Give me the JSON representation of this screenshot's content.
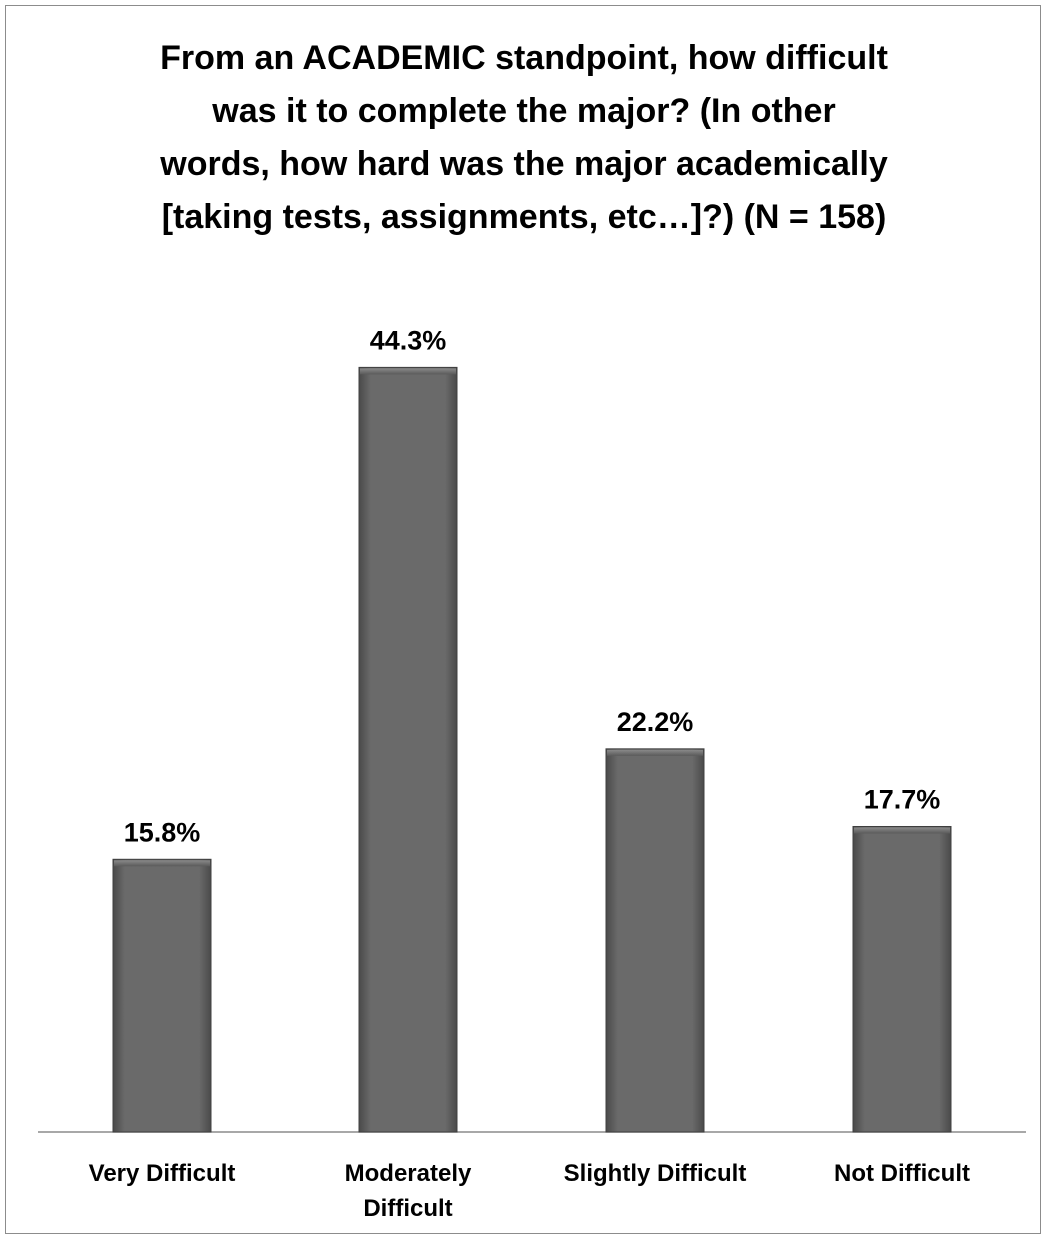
{
  "chart_data": {
    "type": "bar",
    "title": "From an ACADEMIC standpoint, how difficult was it to complete the major? (In other words, how hard was the major academically [taking tests, assignments, etc…]?) (N = 158)",
    "categories": [
      "Very Difficult",
      "Moderately Difficult",
      "Slightly Difficult",
      "Not Difficult"
    ],
    "values": [
      15.8,
      44.3,
      22.2,
      17.7
    ],
    "value_labels": [
      "15.8%",
      "44.3%",
      "22.2%",
      "17.7%"
    ],
    "unit": "%",
    "xlabel": "",
    "ylabel": "",
    "ylim": [
      0,
      50
    ],
    "grid": false,
    "legend": "none",
    "bar_color": "#666666"
  }
}
